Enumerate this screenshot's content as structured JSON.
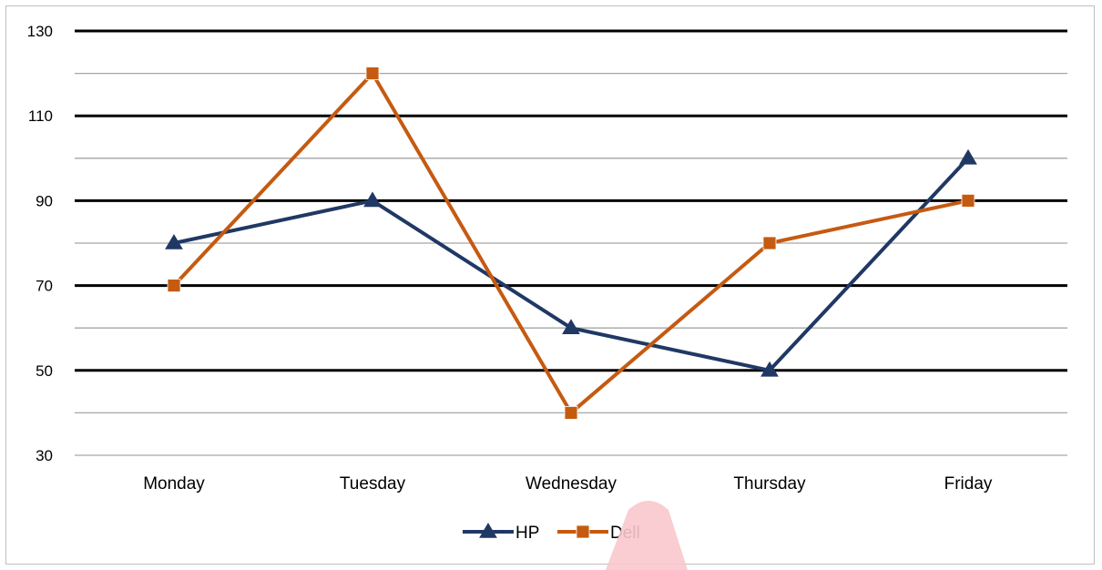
{
  "chart_data": {
    "type": "line",
    "categories": [
      "Monday",
      "Tuesday",
      "Wednesday",
      "Thursday",
      "Friday"
    ],
    "series": [
      {
        "name": "HP",
        "values": [
          80,
          90,
          60,
          50,
          100
        ],
        "color": "#203864",
        "marker": "triangle"
      },
      {
        "name": "Dell",
        "values": [
          70,
          120,
          40,
          80,
          90
        ],
        "color": "#C55A11",
        "marker": "square"
      }
    ],
    "ylim": [
      30,
      130
    ],
    "yticks": [
      30,
      50,
      70,
      90,
      110,
      130
    ],
    "minor_gridlines": [
      40,
      60,
      80,
      100,
      120
    ],
    "grid": true,
    "legend": "bottom"
  }
}
